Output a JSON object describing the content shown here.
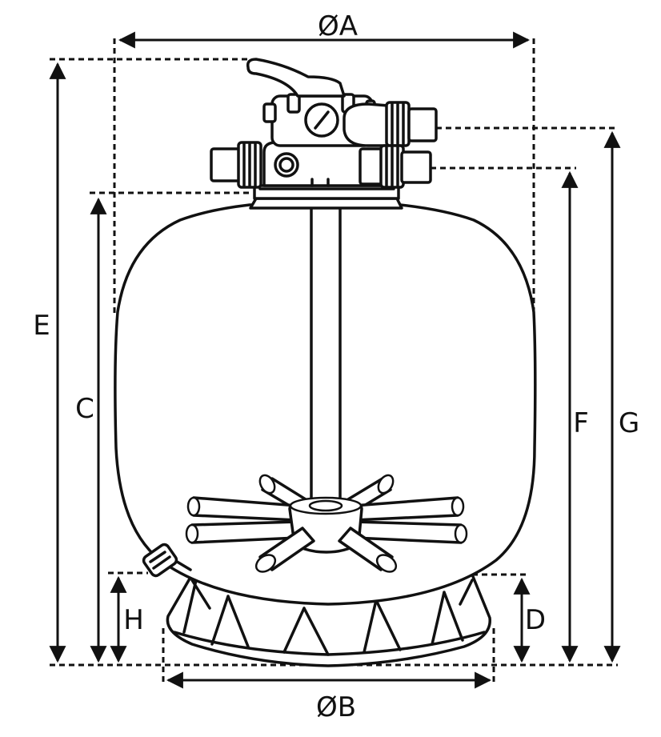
{
  "labels": {
    "dia_a": "ØA",
    "dia_b": "ØB",
    "c": "C",
    "d": "D",
    "e": "E",
    "f": "F",
    "g": "G",
    "h": "H"
  }
}
